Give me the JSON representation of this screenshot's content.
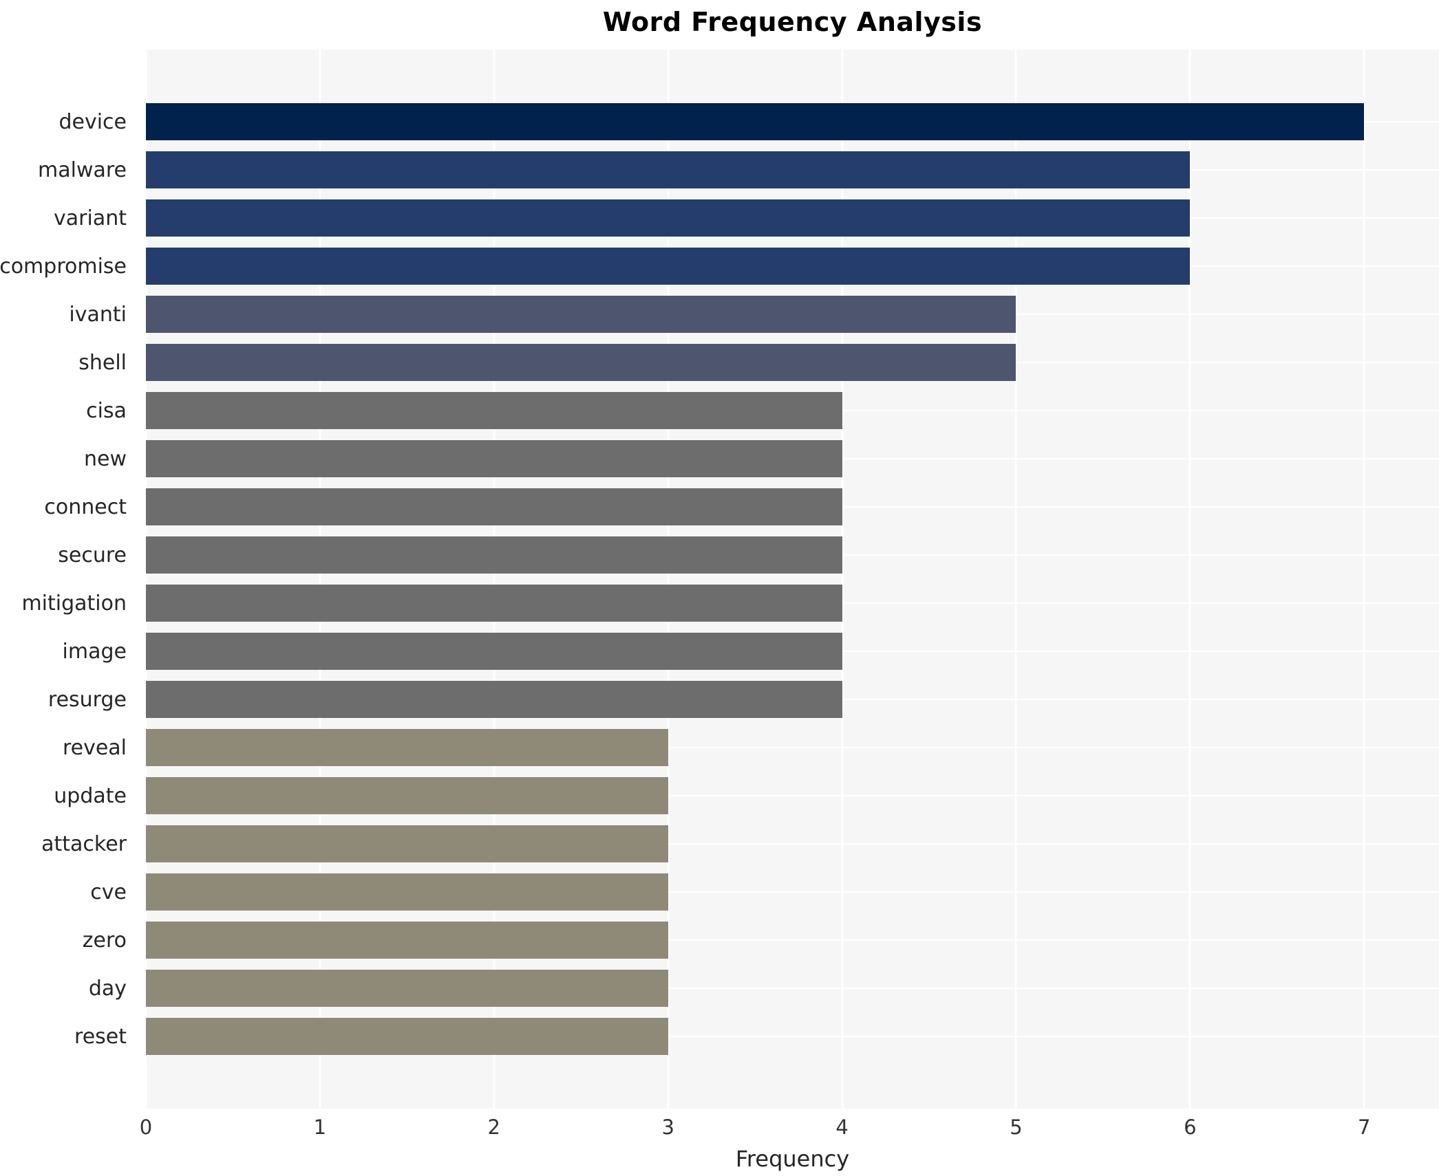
{
  "chart_data": {
    "type": "bar",
    "orientation": "horizontal",
    "title": "Word Frequency Analysis",
    "xlabel": "Frequency",
    "ylabel": "",
    "categories": [
      "device",
      "malware",
      "variant",
      "compromise",
      "ivanti",
      "shell",
      "cisa",
      "new",
      "connect",
      "secure",
      "mitigation",
      "image",
      "resurge",
      "reveal",
      "update",
      "attacker",
      "cve",
      "zero",
      "day",
      "reset"
    ],
    "values": [
      7,
      6,
      6,
      6,
      5,
      5,
      4,
      4,
      4,
      4,
      4,
      4,
      4,
      3,
      3,
      3,
      3,
      3,
      3,
      3
    ],
    "bar_colors": [
      "#02224e",
      "#243d6c",
      "#243d6c",
      "#243d6c",
      "#4d556f",
      "#4d556f",
      "#6d6d6e",
      "#6d6d6e",
      "#6d6d6e",
      "#6d6d6e",
      "#6d6d6e",
      "#6d6d6e",
      "#6d6d6e",
      "#8f8977",
      "#8f8977",
      "#8f8977",
      "#8f8977",
      "#8f8977",
      "#8f8977",
      "#8f8977"
    ],
    "xlim": [
      0,
      7.43
    ],
    "xticks": [
      0,
      1,
      2,
      3,
      4,
      5,
      6,
      7
    ],
    "grid": {
      "vertical": true,
      "horizontal": true,
      "color": "#ffffff"
    },
    "plot_background": "#f6f6f6",
    "legend": "none"
  },
  "style": {
    "figure_background": "#ffffff",
    "title_color": "#000000",
    "label_color": "#262626",
    "tick_color": "#333333"
  }
}
